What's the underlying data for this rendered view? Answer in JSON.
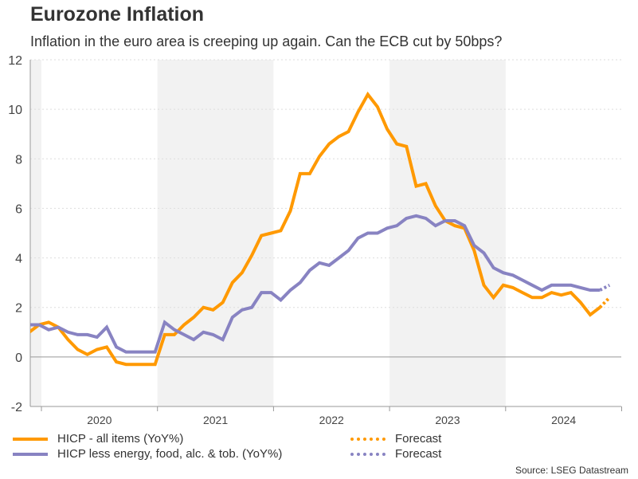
{
  "title": "Eurozone Inflation",
  "subtitle": "Inflation in the euro area is creeping up again. Can the ECB cut by 50bps?",
  "source": "Source: LSEG Datastream",
  "chart_data": {
    "type": "line",
    "ylim": [
      -2,
      12
    ],
    "yticks": [
      -2,
      0,
      2,
      4,
      6,
      8,
      10,
      12
    ],
    "xtick_labels": [
      "2020",
      "2021",
      "2022",
      "2023",
      "2024"
    ],
    "shaded_years": [
      "2019",
      "2021",
      "2023"
    ],
    "grid": "horizontal dotted",
    "legend": "bottom",
    "x_start": "2019-11",
    "series": [
      {
        "name": "HICP - all items (YoY%)",
        "color": "#ff9900",
        "style": "solid",
        "values": [
          1.0,
          1.3,
          1.4,
          1.2,
          0.7,
          0.3,
          0.1,
          0.3,
          0.4,
          -0.2,
          -0.3,
          -0.3,
          -0.3,
          -0.3,
          0.9,
          0.9,
          1.3,
          1.6,
          2.0,
          1.9,
          2.2,
          3.0,
          3.4,
          4.1,
          4.9,
          5.0,
          5.1,
          5.9,
          7.4,
          7.4,
          8.1,
          8.6,
          8.9,
          9.1,
          9.9,
          10.6,
          10.1,
          9.2,
          8.6,
          8.5,
          6.9,
          7.0,
          6.1,
          5.5,
          5.3,
          5.2,
          4.3,
          2.9,
          2.4,
          2.9,
          2.8,
          2.6,
          2.4,
          2.4,
          2.6,
          2.5,
          2.6,
          2.2,
          1.7,
          2.0
        ]
      },
      {
        "name": "Forecast",
        "color": "#ff9900",
        "style": "dotted",
        "x_start": "2024-10",
        "values": [
          2.0,
          2.4
        ]
      },
      {
        "name": "HICP less energy, food, alc. & tob. (YoY%)",
        "color": "#8883c2",
        "style": "solid",
        "values": [
          1.3,
          1.3,
          1.1,
          1.2,
          1.0,
          0.9,
          0.9,
          0.8,
          1.2,
          0.4,
          0.2,
          0.2,
          0.2,
          0.2,
          1.4,
          1.1,
          0.9,
          0.7,
          1.0,
          0.9,
          0.7,
          1.6,
          1.9,
          2.0,
          2.6,
          2.6,
          2.3,
          2.7,
          3.0,
          3.5,
          3.8,
          3.7,
          4.0,
          4.3,
          4.8,
          5.0,
          5.0,
          5.2,
          5.3,
          5.6,
          5.7,
          5.6,
          5.3,
          5.5,
          5.5,
          5.3,
          4.5,
          4.2,
          3.6,
          3.4,
          3.3,
          3.1,
          2.9,
          2.7,
          2.9,
          2.9,
          2.9,
          2.8,
          2.7,
          2.7
        ]
      },
      {
        "name": "Forecast",
        "color": "#8883c2",
        "style": "dotted",
        "x_start": "2024-10",
        "values": [
          2.7,
          2.9
        ]
      }
    ]
  }
}
